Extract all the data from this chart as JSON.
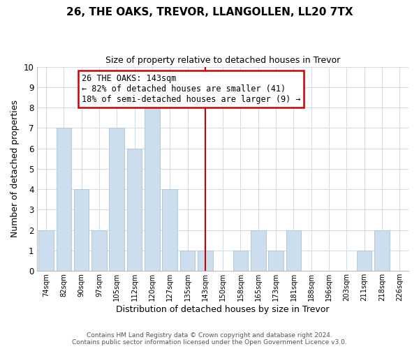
{
  "title": "26, THE OAKS, TREVOR, LLANGOLLEN, LL20 7TX",
  "subtitle": "Size of property relative to detached houses in Trevor",
  "xlabel": "Distribution of detached houses by size in Trevor",
  "ylabel": "Number of detached properties",
  "bar_labels": [
    "74sqm",
    "82sqm",
    "90sqm",
    "97sqm",
    "105sqm",
    "112sqm",
    "120sqm",
    "127sqm",
    "135sqm",
    "143sqm",
    "150sqm",
    "158sqm",
    "165sqm",
    "173sqm",
    "181sqm",
    "188sqm",
    "196sqm",
    "203sqm",
    "211sqm",
    "218sqm",
    "226sqm"
  ],
  "bar_values": [
    2,
    7,
    4,
    2,
    7,
    6,
    8,
    4,
    1,
    1,
    0,
    1,
    2,
    1,
    2,
    0,
    0,
    0,
    1,
    2,
    0
  ],
  "bar_color": "#ccdded",
  "bar_edge_color": "#b0c8dc",
  "highlight_index": 9,
  "highlight_line_color": "#cc0000",
  "ylim": [
    0,
    10
  ],
  "yticks": [
    0,
    1,
    2,
    3,
    4,
    5,
    6,
    7,
    8,
    9,
    10
  ],
  "annotation_title": "26 THE OAKS: 143sqm",
  "annotation_line1": "← 82% of detached houses are smaller (41)",
  "annotation_line2": "18% of semi-detached houses are larger (9) →",
  "annotation_box_color": "#ffffff",
  "annotation_box_edge": "#cc0000",
  "footer_line1": "Contains HM Land Registry data © Crown copyright and database right 2024.",
  "footer_line2": "Contains public sector information licensed under the Open Government Licence v3.0.",
  "background_color": "#ffffff",
  "grid_color": "#d0dce8"
}
